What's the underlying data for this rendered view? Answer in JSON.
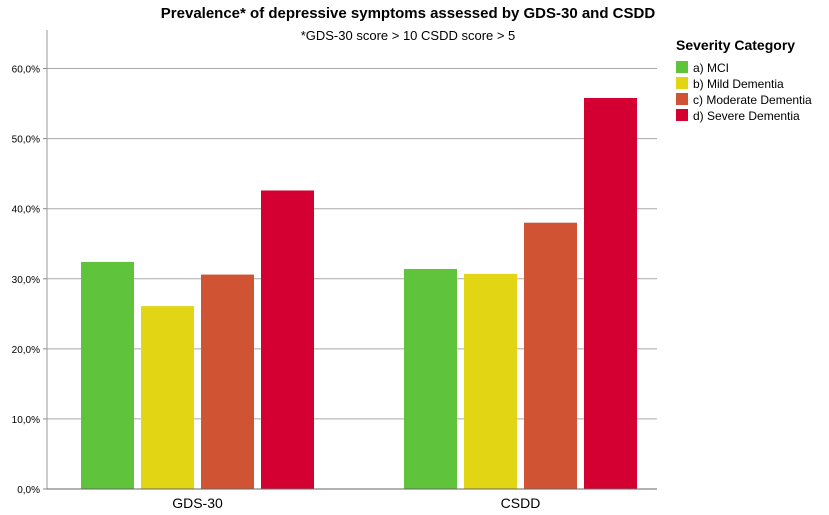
{
  "chart_data": {
    "type": "bar",
    "title": "Prevalence* of depressive symptoms assessed by GDS-30 and CSDD",
    "subtitle": "*GDS-30 score > 10 CSDD score > 5",
    "categories": [
      "GDS-30",
      "CSDD"
    ],
    "series": [
      {
        "name": "a) MCI",
        "color": "#5fc33c",
        "values": [
          32.4,
          31.4
        ]
      },
      {
        "name": "b) Mild Dementia",
        "color": "#e1d514",
        "values": [
          26.1,
          30.7
        ]
      },
      {
        "name": "c) Moderate Dementia",
        "color": "#d05333",
        "values": [
          30.6,
          38.0
        ]
      },
      {
        "name": "d) Severe Dementia",
        "color": "#d40031",
        "values": [
          42.6,
          55.8
        ]
      }
    ],
    "yticks": [
      0,
      10,
      20,
      30,
      40,
      50,
      60
    ],
    "ytick_labels": [
      "0,0%",
      "10,0%",
      "20,0%",
      "30,0%",
      "40,0%",
      "50,0%",
      "60,0%"
    ],
    "ylim": [
      0,
      65.5
    ],
    "xlabel": "",
    "ylabel": "",
    "grid": true,
    "legend": {
      "title": "Severity Category",
      "position": "right"
    }
  }
}
